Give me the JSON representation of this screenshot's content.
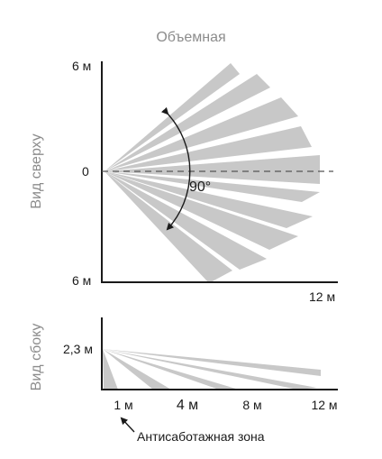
{
  "title": "Объемная",
  "top_view": {
    "side_label": "Вид сверху",
    "y_top_label": "6 м",
    "y_mid_label": "0",
    "y_bottom_label": "6 м",
    "x_label": "12 м",
    "angle_label": "90°"
  },
  "side_view": {
    "side_label": "Вид сбоку",
    "height_label": "2,3 м",
    "x_ticks": [
      "1 м",
      "4 м",
      "8 м",
      "12 м"
    ]
  },
  "anti_sabotage_label": "Антисаботажная зона",
  "colors": {
    "beam": "#c8c8c8",
    "axis": "#1a1a1a",
    "title": "#8c8c8c"
  }
}
